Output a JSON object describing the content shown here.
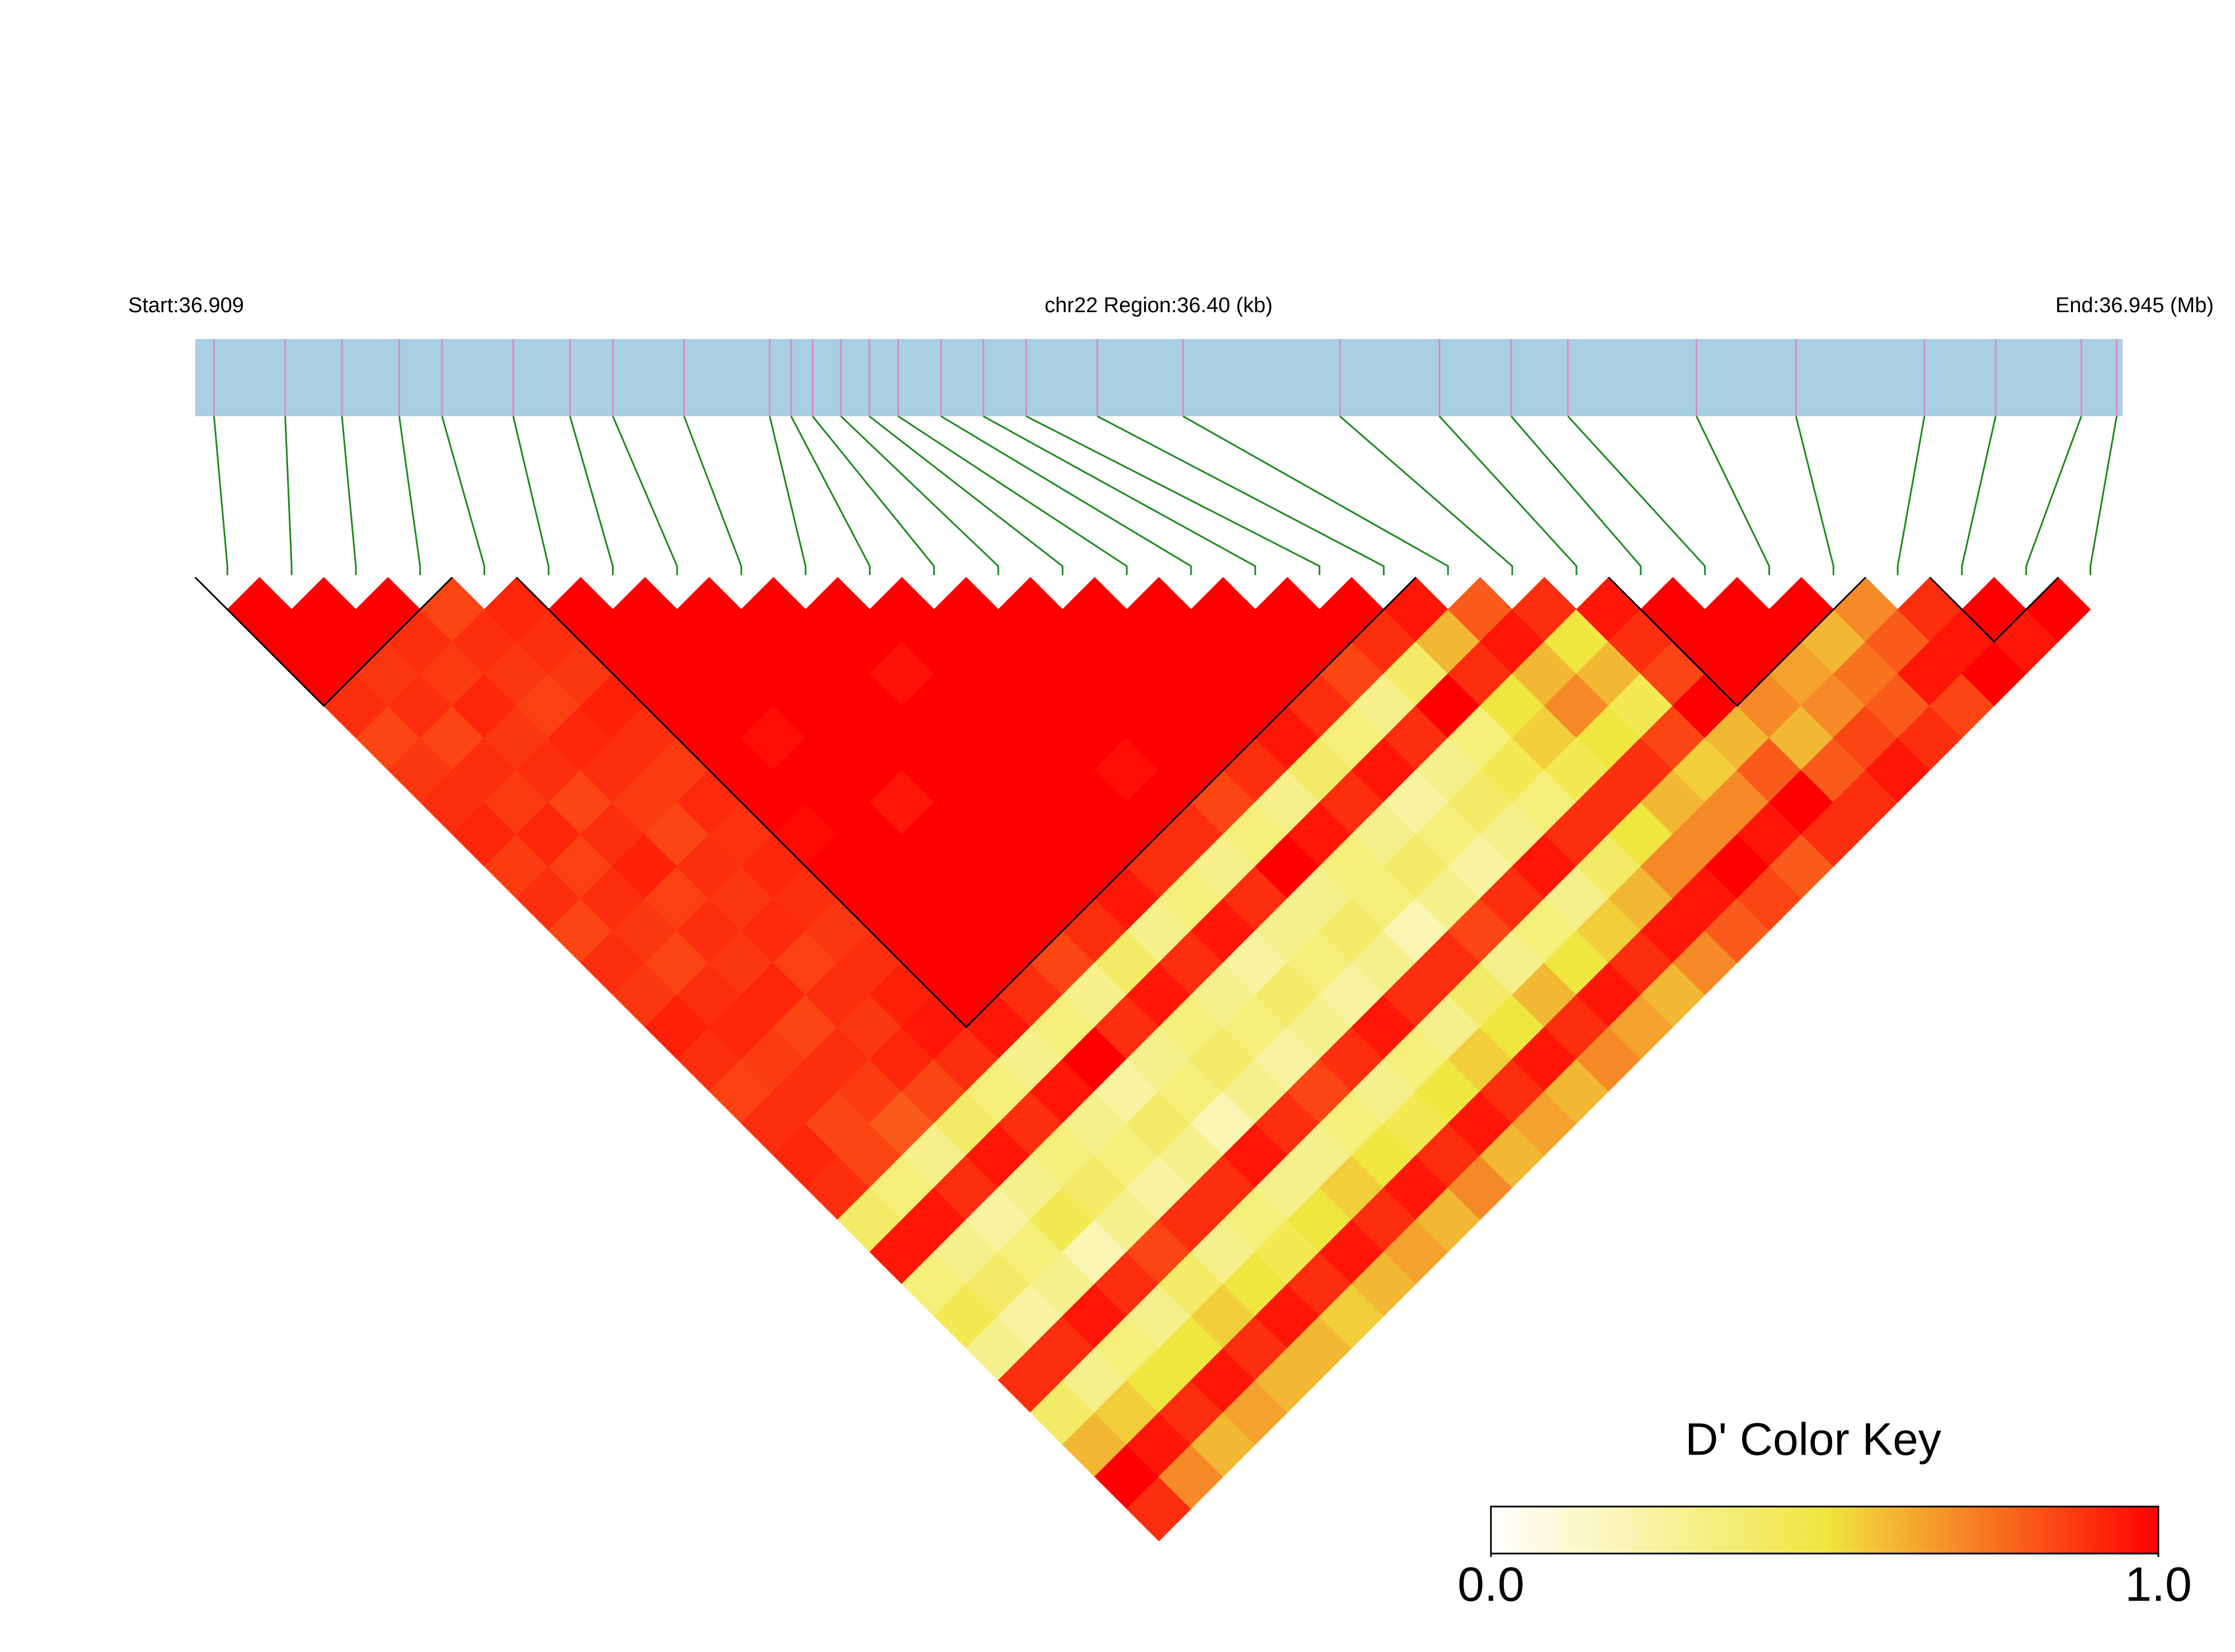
{
  "chart_data": {
    "type": "ld-heatmap",
    "start_label": "Start:36.909",
    "region_label": "chr22 Region:36.40 (kb)",
    "end_label": "End:36.945 (Mb)",
    "key_title": "D' Color Key",
    "xlim": [
      36.909,
      36.945
    ],
    "positions": [
      36.90935,
      36.91068,
      36.91174,
      36.91281,
      36.91361,
      36.91494,
      36.916,
      36.9168,
      36.91813,
      36.91973,
      36.92013,
      36.92053,
      36.92106,
      36.92159,
      36.92213,
      36.92293,
      36.92372,
      36.92452,
      36.92585,
      36.92745,
      36.93038,
      36.93224,
      36.93358,
      36.93464,
      36.93704,
      36.9389,
      36.9413,
      36.94263,
      36.94423,
      36.94489
    ],
    "bar_color": "#a9cfe2",
    "snp_tick_color": "#d98bc8",
    "link_color": "#1a8a1a",
    "blocks": [
      [
        0,
        3
      ],
      [
        5,
        18
      ],
      [
        22,
        25
      ],
      [
        27,
        28
      ]
    ],
    "colorscale": [
      [
        0,
        "#ffffff"
      ],
      [
        0.5,
        "#f0e640"
      ],
      [
        1,
        "#ff0000"
      ]
    ],
    "zlim": [
      0,
      1
    ],
    "key_ticks": [
      {
        "value": 0,
        "label": "0.0"
      },
      {
        "value": 1,
        "label": "1.0"
      }
    ],
    "ld": [
      [
        1,
        1,
        1,
        0.9,
        0.85,
        0.88,
        0.9,
        0.92,
        0.87,
        0.9,
        0.85,
        0.9,
        0.88,
        0.93,
        0.9,
        0.86,
        0.9,
        0.92,
        0.9,
        0.4,
        0.95,
        0.35,
        0.45,
        0.3,
        0.9,
        0.4,
        0.6,
        1,
        0.9
      ],
      [
        1,
        1,
        0.88,
        0.9,
        0.85,
        0.9,
        0.87,
        0.92,
        0.86,
        0.9,
        0.88,
        0.85,
        0.9,
        0.92,
        0.87,
        0.9,
        0.85,
        0.85,
        0.35,
        0.95,
        0.3,
        0.4,
        0.25,
        0.9,
        0.3,
        0.55,
        0.95,
        0.7
      ],
      [
        1,
        0.9,
        0.87,
        0.92,
        0.88,
        0.9,
        0.85,
        0.9,
        0.93,
        0.86,
        0.9,
        0.88,
        0.92,
        0.85,
        0.9,
        0.87,
        0.8,
        0.3,
        0.9,
        0.25,
        0.35,
        0.3,
        0.95,
        0.35,
        0.5,
        0.9,
        0.6
      ],
      [
        0.85,
        0.9,
        0.88,
        0.86,
        0.92,
        0.9,
        0.87,
        0.85,
        0.9,
        0.88,
        0.91,
        0.86,
        0.9,
        0.88,
        0.92,
        0.85,
        0.4,
        0.95,
        0.3,
        0.45,
        0.2,
        0.9,
        0.3,
        0.5,
        0.95,
        0.65
      ],
      [
        0.92,
        0.9,
        0.88,
        0.93,
        0.9,
        0.87,
        0.91,
        0.89,
        0.92,
        0.9,
        0.88,
        0.9,
        0.93,
        0.95,
        0.9,
        0.35,
        0.9,
        0.35,
        0.4,
        0.3,
        0.85,
        0.4,
        0.55,
        0.9,
        0.6
      ],
      [
        1,
        1,
        1,
        1,
        1,
        1,
        1,
        0.98,
        1,
        1,
        1,
        1,
        1,
        0.95,
        0.3,
        0.95,
        0.3,
        0.35,
        0.25,
        0.9,
        0.3,
        0.5,
        0.95,
        0.6
      ],
      [
        1,
        1,
        1,
        1,
        0.97,
        1,
        1,
        1,
        1,
        1,
        1,
        1,
        0.9,
        0.35,
        1,
        0.25,
        0.4,
        0.3,
        0.9,
        0.35,
        0.45,
        0.9,
        0.55
      ],
      [
        1,
        1,
        1,
        1,
        1,
        1,
        0.95,
        1,
        1,
        1,
        1,
        0.85,
        0.3,
        0.9,
        0.3,
        0.35,
        0.2,
        0.95,
        0.3,
        0.5,
        0.95,
        0.6
      ],
      [
        1,
        1,
        1,
        1,
        1,
        1,
        1,
        1,
        1,
        1,
        0.9,
        0.4,
        0.95,
        0.35,
        0.4,
        0.3,
        0.9,
        0.3,
        0.55,
        0.9,
        0.65
      ],
      [
        1,
        1,
        0.96,
        1,
        1,
        1,
        1,
        1,
        1,
        0.95,
        0.3,
        0.9,
        0.3,
        0.35,
        0.25,
        0.85,
        0.35,
        0.5,
        0.95,
        0.6
      ],
      [
        1,
        1,
        1,
        1,
        1,
        1,
        1,
        1,
        0.9,
        0.35,
        0.95,
        0.25,
        0.4,
        0.3,
        0.9,
        0.3,
        0.45,
        0.9,
        0.7
      ],
      [
        1,
        1,
        1,
        1,
        1,
        0.97,
        1,
        0.9,
        0.3,
        0.9,
        0.3,
        0.35,
        0.25,
        0.95,
        0.35,
        0.5,
        0.95,
        0.6
      ],
      [
        1,
        1,
        1,
        1,
        1,
        1,
        0.85,
        0.35,
        1,
        0.3,
        0.4,
        0.3,
        0.9,
        0.3,
        0.55,
        0.9,
        0.65
      ],
      [
        1,
        1,
        1,
        1,
        1,
        0.9,
        0.3,
        0.95,
        0.35,
        0.35,
        0.2,
        0.9,
        0.4,
        0.5,
        0.95,
        0.6
      ],
      [
        1,
        1,
        1,
        1,
        0.95,
        0.4,
        0.9,
        0.3,
        0.4,
        0.3,
        0.85,
        0.3,
        0.6,
        0.9,
        0.7
      ],
      [
        1,
        1,
        1,
        0.9,
        0.35,
        0.95,
        0.25,
        0.35,
        0.25,
        0.9,
        0.35,
        0.5,
        0.95,
        0.65
      ],
      [
        1,
        1,
        0.85,
        0.3,
        0.9,
        0.3,
        0.4,
        0.3,
        0.95,
        0.3,
        0.55,
        0.9,
        0.6
      ],
      [
        1,
        0.9,
        0.4,
        1,
        0.35,
        0.45,
        0.35,
        0.9,
        0.4,
        0.6,
        0.95,
        0.7
      ],
      [
        0.95,
        0.6,
        0.9,
        0.5,
        0.55,
        0.45,
        0.9,
        0.5,
        0.7,
        0.95,
        0.8
      ],
      [
        0.8,
        0.95,
        0.6,
        0.7,
        0.5,
        0.9,
        0.6,
        0.7,
        1,
        0.85
      ],
      [
        0.9,
        0.5,
        0.6,
        0.45,
        0.85,
        0.55,
        0.7,
        0.95,
        0.8
      ],
      [
        0.95,
        0.9,
        0.85,
        1,
        0.6,
        0.8,
        1,
        0.9
      ],
      [
        1,
        1,
        1,
        0.7,
        0.6,
        0.8,
        0.9
      ],
      [
        1,
        1,
        0.65,
        0.7,
        0.85,
        0.95
      ],
      [
        1,
        0.6,
        0.75,
        0.8,
        0.9
      ],
      [
        0.7,
        0.8,
        0.95,
        0.85
      ],
      [
        0.9,
        0.95,
        1
      ],
      [
        1,
        0.95
      ],
      [
        1
      ]
    ]
  }
}
